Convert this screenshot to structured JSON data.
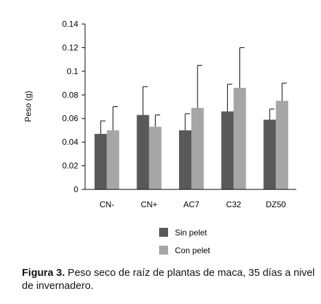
{
  "chart_data": {
    "type": "bar",
    "ylabel": "Peso (g)",
    "xlabel": "",
    "ylim": [
      0,
      0.14
    ],
    "yticks": [
      0,
      0.02,
      0.04,
      0.06,
      0.08,
      0.1,
      0.12,
      0.14
    ],
    "ytick_labels": [
      "0",
      "0.02",
      "0.04",
      "0.06",
      "0.08",
      "0.1",
      "0.12",
      "0.14"
    ],
    "categories": [
      "CN-",
      "CN+",
      "AC7",
      "C32",
      "DZ50"
    ],
    "series": [
      {
        "name": "Sin pelet",
        "color": "#595959",
        "values": [
          0.047,
          0.063,
          0.05,
          0.066,
          0.059
        ],
        "errors": [
          0.011,
          0.024,
          0.014,
          0.023,
          0.009
        ]
      },
      {
        "name": "Con pelet",
        "color": "#a6a6a6",
        "values": [
          0.05,
          0.053,
          0.069,
          0.086,
          0.075
        ],
        "errors": [
          0.02,
          0.01,
          0.036,
          0.034,
          0.015
        ]
      }
    ],
    "legend_position": "bottom",
    "grid": false
  },
  "caption": {
    "label": "Figura 3.",
    "text": " Peso seco de raíz de plantas de maca, 35 días a nivel de invernadero."
  }
}
